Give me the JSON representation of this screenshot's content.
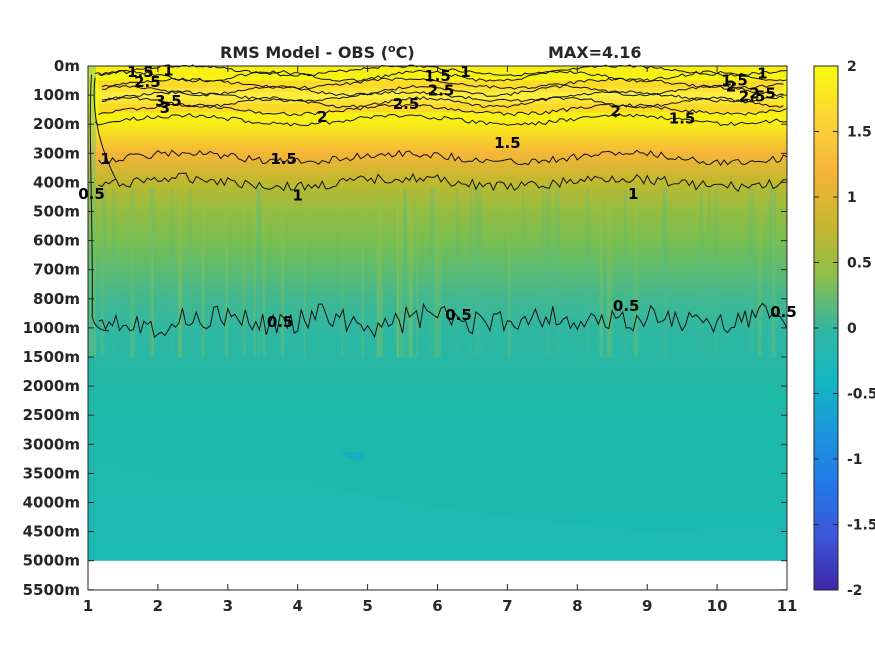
{
  "chart_data": {
    "type": "heatmap",
    "title": "RMS Model - OBS (",
    "title_unit_sup": "o",
    "title_unit_end": "C)",
    "max_label": "MAX=4.16",
    "x_ticks": [
      "1",
      "2",
      "3",
      "4",
      "5",
      "6",
      "7",
      "8",
      "9",
      "10",
      "11"
    ],
    "xlim": [
      1,
      11
    ],
    "y_ticks": [
      "0m",
      "100m",
      "200m",
      "300m",
      "400m",
      "500m",
      "600m",
      "700m",
      "800m",
      "1000m",
      "1500m",
      "2000m",
      "2500m",
      "3000m",
      "3500m",
      "4000m",
      "4500m",
      "5000m",
      "5500m"
    ],
    "y_data_bottom_label": "5000m",
    "colorbar": {
      "ticks": [
        "2",
        "1.5",
        "1",
        "0.5",
        "0",
        "-0.5",
        "-1",
        "-1.5",
        "-2"
      ],
      "clim": [
        -2,
        2
      ],
      "colormap": "parula"
    },
    "depth_profile": [
      {
        "depth": "0m",
        "value": 1.9
      },
      {
        "depth": "100m",
        "value": 2.5
      },
      {
        "depth": "200m",
        "value": 1.9
      },
      {
        "depth": "300m",
        "value": 1.5
      },
      {
        "depth": "400m",
        "value": 1.0
      },
      {
        "depth": "500m",
        "value": 0.85
      },
      {
        "depth": "600m",
        "value": 0.75
      },
      {
        "depth": "700m",
        "value": 0.65
      },
      {
        "depth": "800m",
        "value": 0.55
      },
      {
        "depth": "1000m",
        "value": 0.45
      },
      {
        "depth": "1500m",
        "value": 0.35
      },
      {
        "depth": "2000m",
        "value": 0.25
      },
      {
        "depth": "2500m",
        "value": 0.22
      },
      {
        "depth": "3000m",
        "value": 0.2
      },
      {
        "depth": "3500m",
        "value": 0.2
      },
      {
        "depth": "4000m",
        "value": 0.18
      },
      {
        "depth": "4500m",
        "value": 0.14
      },
      {
        "depth": "5000m",
        "value": 0.12
      }
    ],
    "contour_labels": [
      {
        "text": "1.5",
        "x": 1.75,
        "depth": 0.2
      },
      {
        "text": "1",
        "x": 2.15,
        "depth": 0.15
      },
      {
        "text": "2.5",
        "x": 1.85,
        "depth": 0.55
      },
      {
        "text": "3.5",
        "x": 2.15,
        "depth": 1.2
      },
      {
        "text": "3",
        "x": 2.1,
        "depth": 1.45
      },
      {
        "text": "2",
        "x": 4.35,
        "depth": 1.75
      },
      {
        "text": "1",
        "x": 1.25,
        "depth": 3.2
      },
      {
        "text": "0.5",
        "x": 1.05,
        "depth": 4.4
      },
      {
        "text": "1.5",
        "x": 3.8,
        "depth": 3.2
      },
      {
        "text": "1.5",
        "x": 6.0,
        "depth": 0.35
      },
      {
        "text": "1",
        "x": 6.4,
        "depth": 0.2
      },
      {
        "text": "2.5",
        "x": 6.05,
        "depth": 0.85
      },
      {
        "text": "2.5",
        "x": 5.55,
        "depth": 1.3
      },
      {
        "text": "1.5",
        "x": 7.0,
        "depth": 2.65
      },
      {
        "text": "2",
        "x": 8.55,
        "depth": 1.55
      },
      {
        "text": "1",
        "x": 4.0,
        "depth": 4.45
      },
      {
        "text": "1",
        "x": 8.8,
        "depth": 4.4
      },
      {
        "text": "0.5",
        "x": 3.75,
        "depth": 8.8
      },
      {
        "text": "0.5",
        "x": 6.3,
        "depth": 8.55
      },
      {
        "text": "0.5",
        "x": 8.7,
        "depth": 8.25
      },
      {
        "text": "0.5",
        "x": 10.95,
        "depth": 8.45
      },
      {
        "text": "1.5",
        "x": 10.25,
        "depth": 0.5
      },
      {
        "text": "2",
        "x": 10.2,
        "depth": 0.7
      },
      {
        "text": "1",
        "x": 10.65,
        "depth": 0.25
      },
      {
        "text": "2.5",
        "x": 10.5,
        "depth": 1.05
      },
      {
        "text": "2.5",
        "x": 10.65,
        "depth": 0.95
      },
      {
        "text": "1.5",
        "x": 9.5,
        "depth": 1.8
      }
    ]
  }
}
